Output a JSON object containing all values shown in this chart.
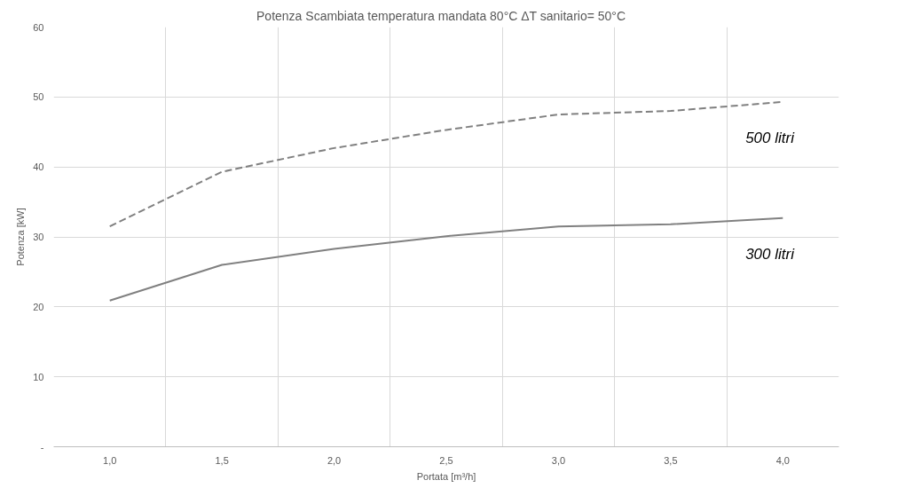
{
  "chart_data": {
    "type": "line",
    "title": "Potenza Scambiata temperatura mandata 80°C    ΔT sanitario= 50°C",
    "xlabel": "Portata [m³/h]",
    "ylabel": "Potenza [kW]",
    "categories": [
      "1,0",
      "1,5",
      "2,0",
      "2,5",
      "3,0",
      "3,5",
      "4,0"
    ],
    "series": [
      {
        "name": "500 litri",
        "color": "#808080",
        "line_style": "dashed",
        "values": [
          31.5,
          39.3,
          42.7,
          45.3,
          47.5,
          48.0,
          49.3
        ]
      },
      {
        "name": "300 litri",
        "color": "#808080",
        "line_style": "solid",
        "values": [
          20.9,
          26.0,
          28.3,
          30.1,
          31.5,
          31.8,
          32.7
        ]
      }
    ],
    "ylim": [
      0,
      60
    ],
    "yticks": [
      {
        "value": 0,
        "label": "-"
      },
      10,
      20,
      30,
      40,
      50,
      60
    ],
    "grid": true,
    "legend": false,
    "marker": "none"
  }
}
